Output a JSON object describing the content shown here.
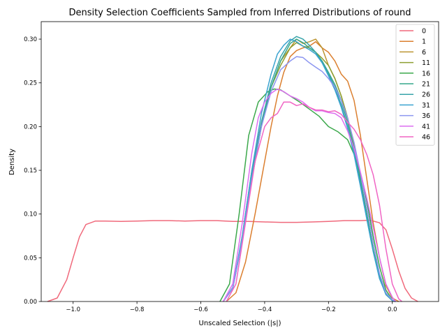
{
  "chart_data": {
    "type": "line",
    "title": "Density Selection Coefficients Sampled from Inferred Distributions of round",
    "xlabel": "Unscaled Selection (|s|)",
    "ylabel": "Density",
    "xlim": [
      -1.1,
      0.145
    ],
    "ylim": [
      0,
      0.32
    ],
    "xticks": [
      -1.0,
      -0.8,
      -0.6,
      -0.4,
      -0.2,
      0.0
    ],
    "xtick_labels": [
      "−1.0",
      "−0.8",
      "−0.6",
      "−0.4",
      "−0.2",
      "0.0"
    ],
    "yticks": [
      0.0,
      0.05,
      0.1,
      0.15,
      0.2,
      0.25,
      0.3
    ],
    "ytick_labels": [
      "0.00",
      "0.05",
      "0.10",
      "0.15",
      "0.20",
      "0.25",
      "0.30"
    ],
    "grid": false,
    "legend_position": "top-right",
    "series": [
      {
        "name": "0",
        "color": "#f0697b",
        "points": [
          [
            -1.08,
            0.0
          ],
          [
            -1.05,
            0.004
          ],
          [
            -1.02,
            0.025
          ],
          [
            -1.0,
            0.05
          ],
          [
            -0.98,
            0.074
          ],
          [
            -0.96,
            0.088
          ],
          [
            -0.93,
            0.092
          ],
          [
            -0.9,
            0.092
          ],
          [
            -0.85,
            0.0915
          ],
          [
            -0.8,
            0.092
          ],
          [
            -0.75,
            0.0925
          ],
          [
            -0.7,
            0.0925
          ],
          [
            -0.65,
            0.092
          ],
          [
            -0.6,
            0.0925
          ],
          [
            -0.55,
            0.0925
          ],
          [
            -0.5,
            0.0915
          ],
          [
            -0.45,
            0.0915
          ],
          [
            -0.4,
            0.091
          ],
          [
            -0.35,
            0.0905
          ],
          [
            -0.3,
            0.0905
          ],
          [
            -0.25,
            0.091
          ],
          [
            -0.2,
            0.0915
          ],
          [
            -0.15,
            0.0925
          ],
          [
            -0.1,
            0.0925
          ],
          [
            -0.07,
            0.093
          ],
          [
            -0.04,
            0.09
          ],
          [
            -0.02,
            0.082
          ],
          [
            0.0,
            0.06
          ],
          [
            0.02,
            0.035
          ],
          [
            0.04,
            0.015
          ],
          [
            0.06,
            0.004
          ],
          [
            0.08,
            0.0
          ]
        ]
      },
      {
        "name": "1",
        "color": "#db7f2f",
        "points": [
          [
            -0.52,
            0.0
          ],
          [
            -0.49,
            0.01
          ],
          [
            -0.46,
            0.045
          ],
          [
            -0.43,
            0.1
          ],
          [
            -0.4,
            0.16
          ],
          [
            -0.38,
            0.2
          ],
          [
            -0.36,
            0.235
          ],
          [
            -0.34,
            0.262
          ],
          [
            -0.32,
            0.28
          ],
          [
            -0.3,
            0.287
          ],
          [
            -0.28,
            0.29
          ],
          [
            -0.26,
            0.292
          ],
          [
            -0.24,
            0.297
          ],
          [
            -0.22,
            0.29
          ],
          [
            -0.2,
            0.285
          ],
          [
            -0.18,
            0.275
          ],
          [
            -0.16,
            0.26
          ],
          [
            -0.14,
            0.252
          ],
          [
            -0.12,
            0.23
          ],
          [
            -0.1,
            0.19
          ],
          [
            -0.08,
            0.14
          ],
          [
            -0.06,
            0.09
          ],
          [
            -0.04,
            0.05
          ],
          [
            -0.02,
            0.018
          ],
          [
            0.0,
            0.004
          ],
          [
            0.02,
            0.0
          ]
        ]
      },
      {
        "name": "6",
        "color": "#bc9532",
        "points": [
          [
            -0.53,
            0.0
          ],
          [
            -0.5,
            0.015
          ],
          [
            -0.47,
            0.07
          ],
          [
            -0.44,
            0.14
          ],
          [
            -0.41,
            0.2
          ],
          [
            -0.38,
            0.245
          ],
          [
            -0.35,
            0.275
          ],
          [
            -0.32,
            0.29
          ],
          [
            -0.3,
            0.3
          ],
          [
            -0.28,
            0.295
          ],
          [
            -0.26,
            0.297
          ],
          [
            -0.24,
            0.3
          ],
          [
            -0.22,
            0.29
          ],
          [
            -0.2,
            0.27
          ],
          [
            -0.18,
            0.255
          ],
          [
            -0.16,
            0.235
          ],
          [
            -0.14,
            0.21
          ],
          [
            -0.12,
            0.18
          ],
          [
            -0.1,
            0.14
          ],
          [
            -0.08,
            0.1
          ],
          [
            -0.06,
            0.06
          ],
          [
            -0.04,
            0.028
          ],
          [
            -0.02,
            0.008
          ],
          [
            0.0,
            0.001
          ],
          [
            0.01,
            0.0
          ]
        ]
      },
      {
        "name": "11",
        "color": "#8e9f32",
        "points": [
          [
            -0.53,
            0.0
          ],
          [
            -0.5,
            0.015
          ],
          [
            -0.47,
            0.075
          ],
          [
            -0.44,
            0.15
          ],
          [
            -0.41,
            0.205
          ],
          [
            -0.38,
            0.245
          ],
          [
            -0.35,
            0.27
          ],
          [
            -0.32,
            0.29
          ],
          [
            -0.3,
            0.296
          ],
          [
            -0.28,
            0.292
          ],
          [
            -0.26,
            0.29
          ],
          [
            -0.24,
            0.285
          ],
          [
            -0.22,
            0.278
          ],
          [
            -0.2,
            0.27
          ],
          [
            -0.18,
            0.255
          ],
          [
            -0.16,
            0.235
          ],
          [
            -0.14,
            0.21
          ],
          [
            -0.12,
            0.18
          ],
          [
            -0.1,
            0.14
          ],
          [
            -0.08,
            0.1
          ],
          [
            -0.06,
            0.06
          ],
          [
            -0.04,
            0.028
          ],
          [
            -0.02,
            0.008
          ],
          [
            0.0,
            0.001
          ],
          [
            0.01,
            0.0
          ]
        ]
      },
      {
        "name": "16",
        "color": "#3ba84b",
        "points": [
          [
            -0.54,
            0.0
          ],
          [
            -0.51,
            0.02
          ],
          [
            -0.48,
            0.1
          ],
          [
            -0.45,
            0.19
          ],
          [
            -0.42,
            0.228
          ],
          [
            -0.39,
            0.24
          ],
          [
            -0.37,
            0.243
          ],
          [
            -0.35,
            0.242
          ],
          [
            -0.32,
            0.235
          ],
          [
            -0.29,
            0.228
          ],
          [
            -0.26,
            0.22
          ],
          [
            -0.23,
            0.212
          ],
          [
            -0.2,
            0.2
          ],
          [
            -0.17,
            0.194
          ],
          [
            -0.14,
            0.185
          ],
          [
            -0.11,
            0.16
          ],
          [
            -0.08,
            0.115
          ],
          [
            -0.06,
            0.075
          ],
          [
            -0.04,
            0.04
          ],
          [
            -0.02,
            0.013
          ],
          [
            0.0,
            0.002
          ],
          [
            0.01,
            0.0
          ]
        ]
      },
      {
        "name": "21",
        "color": "#35a78c",
        "points": [
          [
            -0.53,
            0.0
          ],
          [
            -0.5,
            0.015
          ],
          [
            -0.47,
            0.07
          ],
          [
            -0.44,
            0.14
          ],
          [
            -0.41,
            0.2
          ],
          [
            -0.38,
            0.245
          ],
          [
            -0.35,
            0.275
          ],
          [
            -0.32,
            0.295
          ],
          [
            -0.3,
            0.3
          ],
          [
            -0.28,
            0.296
          ],
          [
            -0.26,
            0.29
          ],
          [
            -0.24,
            0.285
          ],
          [
            -0.22,
            0.275
          ],
          [
            -0.2,
            0.262
          ],
          [
            -0.18,
            0.248
          ],
          [
            -0.16,
            0.23
          ],
          [
            -0.14,
            0.205
          ],
          [
            -0.12,
            0.175
          ],
          [
            -0.1,
            0.14
          ],
          [
            -0.08,
            0.1
          ],
          [
            -0.06,
            0.06
          ],
          [
            -0.04,
            0.028
          ],
          [
            -0.02,
            0.008
          ],
          [
            0.0,
            0.001
          ],
          [
            0.01,
            0.0
          ]
        ]
      },
      {
        "name": "26",
        "color": "#38a4aa",
        "points": [
          [
            -0.53,
            0.0
          ],
          [
            -0.5,
            0.015
          ],
          [
            -0.47,
            0.07
          ],
          [
            -0.44,
            0.145
          ],
          [
            -0.41,
            0.205
          ],
          [
            -0.38,
            0.25
          ],
          [
            -0.35,
            0.28
          ],
          [
            -0.32,
            0.298
          ],
          [
            -0.3,
            0.303
          ],
          [
            -0.28,
            0.3
          ],
          [
            -0.26,
            0.293
          ],
          [
            -0.24,
            0.285
          ],
          [
            -0.22,
            0.273
          ],
          [
            -0.2,
            0.26
          ],
          [
            -0.18,
            0.245
          ],
          [
            -0.16,
            0.225
          ],
          [
            -0.14,
            0.2
          ],
          [
            -0.12,
            0.17
          ],
          [
            -0.1,
            0.135
          ],
          [
            -0.08,
            0.095
          ],
          [
            -0.06,
            0.058
          ],
          [
            -0.04,
            0.027
          ],
          [
            -0.02,
            0.008
          ],
          [
            0.0,
            0.001
          ],
          [
            0.01,
            0.0
          ]
        ]
      },
      {
        "name": "31",
        "color": "#3ba3d0",
        "points": [
          [
            -0.53,
            0.0
          ],
          [
            -0.5,
            0.016
          ],
          [
            -0.47,
            0.075
          ],
          [
            -0.44,
            0.15
          ],
          [
            -0.41,
            0.215
          ],
          [
            -0.38,
            0.26
          ],
          [
            -0.36,
            0.283
          ],
          [
            -0.34,
            0.293
          ],
          [
            -0.32,
            0.3
          ],
          [
            -0.3,
            0.297
          ],
          [
            -0.28,
            0.292
          ],
          [
            -0.26,
            0.288
          ],
          [
            -0.24,
            0.283
          ],
          [
            -0.22,
            0.273
          ],
          [
            -0.2,
            0.258
          ],
          [
            -0.18,
            0.242
          ],
          [
            -0.16,
            0.222
          ],
          [
            -0.14,
            0.198
          ],
          [
            -0.12,
            0.168
          ],
          [
            -0.1,
            0.132
          ],
          [
            -0.08,
            0.094
          ],
          [
            -0.06,
            0.057
          ],
          [
            -0.04,
            0.026
          ],
          [
            -0.02,
            0.008
          ],
          [
            0.0,
            0.001
          ],
          [
            0.01,
            0.0
          ]
        ]
      },
      {
        "name": "36",
        "color": "#8c96f0",
        "points": [
          [
            -0.53,
            0.0
          ],
          [
            -0.5,
            0.015
          ],
          [
            -0.47,
            0.07
          ],
          [
            -0.44,
            0.14
          ],
          [
            -0.41,
            0.2
          ],
          [
            -0.38,
            0.24
          ],
          [
            -0.35,
            0.265
          ],
          [
            -0.32,
            0.275
          ],
          [
            -0.3,
            0.28
          ],
          [
            -0.28,
            0.279
          ],
          [
            -0.26,
            0.273
          ],
          [
            -0.24,
            0.268
          ],
          [
            -0.22,
            0.263
          ],
          [
            -0.2,
            0.255
          ],
          [
            -0.18,
            0.245
          ],
          [
            -0.16,
            0.23
          ],
          [
            -0.14,
            0.21
          ],
          [
            -0.12,
            0.182
          ],
          [
            -0.1,
            0.147
          ],
          [
            -0.08,
            0.108
          ],
          [
            -0.06,
            0.068
          ],
          [
            -0.04,
            0.032
          ],
          [
            -0.02,
            0.01
          ],
          [
            0.0,
            0.002
          ],
          [
            0.01,
            0.0
          ]
        ]
      },
      {
        "name": "41",
        "color": "#dc6ef0",
        "points": [
          [
            -0.53,
            0.0
          ],
          [
            -0.5,
            0.02
          ],
          [
            -0.47,
            0.09
          ],
          [
            -0.44,
            0.17
          ],
          [
            -0.42,
            0.21
          ],
          [
            -0.4,
            0.228
          ],
          [
            -0.38,
            0.238
          ],
          [
            -0.36,
            0.243
          ],
          [
            -0.34,
            0.24
          ],
          [
            -0.32,
            0.235
          ],
          [
            -0.3,
            0.232
          ],
          [
            -0.28,
            0.228
          ],
          [
            -0.26,
            0.222
          ],
          [
            -0.24,
            0.218
          ],
          [
            -0.22,
            0.218
          ],
          [
            -0.2,
            0.216
          ],
          [
            -0.18,
            0.215
          ],
          [
            -0.16,
            0.21
          ],
          [
            -0.14,
            0.195
          ],
          [
            -0.12,
            0.175
          ],
          [
            -0.1,
            0.148
          ],
          [
            -0.08,
            0.118
          ],
          [
            -0.06,
            0.085
          ],
          [
            -0.04,
            0.05
          ],
          [
            -0.02,
            0.02
          ],
          [
            0.0,
            0.005
          ],
          [
            0.01,
            0.0
          ]
        ]
      },
      {
        "name": "46",
        "color": "#f065c4",
        "points": [
          [
            -0.52,
            0.0
          ],
          [
            -0.49,
            0.02
          ],
          [
            -0.46,
            0.09
          ],
          [
            -0.43,
            0.16
          ],
          [
            -0.4,
            0.2
          ],
          [
            -0.38,
            0.21
          ],
          [
            -0.36,
            0.215
          ],
          [
            -0.34,
            0.228
          ],
          [
            -0.32,
            0.228
          ],
          [
            -0.3,
            0.224
          ],
          [
            -0.28,
            0.226
          ],
          [
            -0.26,
            0.222
          ],
          [
            -0.24,
            0.219
          ],
          [
            -0.22,
            0.219
          ],
          [
            -0.2,
            0.217
          ],
          [
            -0.18,
            0.218
          ],
          [
            -0.16,
            0.214
          ],
          [
            -0.14,
            0.205
          ],
          [
            -0.12,
            0.197
          ],
          [
            -0.1,
            0.185
          ],
          [
            -0.08,
            0.168
          ],
          [
            -0.06,
            0.145
          ],
          [
            -0.04,
            0.11
          ],
          [
            -0.02,
            0.06
          ],
          [
            0.0,
            0.02
          ],
          [
            0.02,
            0.003
          ],
          [
            0.03,
            0.0
          ]
        ]
      }
    ]
  }
}
